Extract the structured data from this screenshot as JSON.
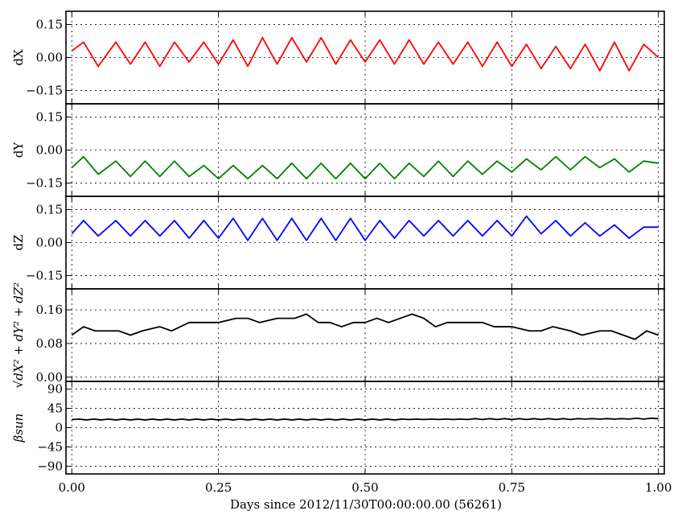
{
  "chart_data": {
    "type": "line",
    "xlabel": "Days since 2012/11/30T00:00:00.00 (56261)",
    "xlim": [
      -0.01,
      1.01
    ],
    "xticks": [
      0.0,
      0.25,
      0.5,
      0.75,
      1.0
    ],
    "xtick_labels": [
      "0.00",
      "0.25",
      "0.50",
      "0.75",
      "1.00"
    ],
    "grid": true,
    "panels": [
      {
        "key": "dx",
        "ylabel": "dX",
        "ylim": [
          -0.21,
          0.21
        ],
        "yticks": [
          -0.15,
          0.0,
          0.15
        ],
        "ytick_labels": [
          "-0.15",
          "0.00",
          "0.15"
        ],
        "color": "#ff0000",
        "series": {
          "x": [
            0.0,
            0.02,
            0.045,
            0.075,
            0.1,
            0.125,
            0.15,
            0.175,
            0.2,
            0.225,
            0.25,
            0.275,
            0.3,
            0.325,
            0.35,
            0.375,
            0.4,
            0.425,
            0.45,
            0.475,
            0.5,
            0.525,
            0.55,
            0.575,
            0.6,
            0.625,
            0.65,
            0.675,
            0.7,
            0.725,
            0.75,
            0.775,
            0.8,
            0.825,
            0.85,
            0.875,
            0.9,
            0.925,
            0.95,
            0.975,
            1.0
          ],
          "y": [
            0.03,
            0.07,
            -0.04,
            0.07,
            -0.03,
            0.07,
            -0.04,
            0.07,
            -0.02,
            0.07,
            -0.03,
            0.08,
            -0.04,
            0.09,
            -0.03,
            0.09,
            -0.02,
            0.09,
            -0.03,
            0.08,
            -0.02,
            0.08,
            -0.03,
            0.08,
            -0.03,
            0.07,
            -0.03,
            0.07,
            -0.04,
            0.07,
            -0.04,
            0.06,
            -0.05,
            0.05,
            -0.05,
            0.06,
            -0.06,
            0.07,
            -0.06,
            0.06,
            0.0
          ]
        }
      },
      {
        "key": "dy",
        "ylabel": "dY",
        "ylim": [
          -0.21,
          0.21
        ],
        "yticks": [
          -0.15,
          0.0,
          0.15
        ],
        "ytick_labels": [
          "-0.15",
          "0.00",
          "0.15"
        ],
        "color": "#008000",
        "series": {
          "x": [
            0.0,
            0.02,
            0.045,
            0.075,
            0.1,
            0.125,
            0.15,
            0.175,
            0.2,
            0.225,
            0.25,
            0.275,
            0.3,
            0.325,
            0.35,
            0.375,
            0.4,
            0.425,
            0.45,
            0.475,
            0.5,
            0.525,
            0.55,
            0.575,
            0.6,
            0.625,
            0.65,
            0.675,
            0.7,
            0.725,
            0.75,
            0.775,
            0.8,
            0.825,
            0.85,
            0.875,
            0.9,
            0.925,
            0.95,
            0.975,
            1.0
          ],
          "y": [
            -0.08,
            -0.03,
            -0.11,
            -0.05,
            -0.12,
            -0.05,
            -0.12,
            -0.05,
            -0.12,
            -0.07,
            -0.13,
            -0.07,
            -0.13,
            -0.07,
            -0.13,
            -0.06,
            -0.13,
            -0.06,
            -0.13,
            -0.06,
            -0.13,
            -0.06,
            -0.13,
            -0.06,
            -0.12,
            -0.05,
            -0.12,
            -0.05,
            -0.11,
            -0.05,
            -0.1,
            -0.04,
            -0.09,
            -0.03,
            -0.09,
            -0.03,
            -0.08,
            -0.04,
            -0.1,
            -0.05,
            -0.06
          ]
        }
      },
      {
        "key": "dz",
        "ylabel": "dZ",
        "ylim": [
          -0.21,
          0.21
        ],
        "yticks": [
          -0.15,
          0.0,
          0.15
        ],
        "ytick_labels": [
          "-0.15",
          "0.00",
          "0.15"
        ],
        "color": "#0000ff",
        "series": {
          "x": [
            0.0,
            0.02,
            0.045,
            0.075,
            0.1,
            0.125,
            0.15,
            0.175,
            0.2,
            0.225,
            0.25,
            0.275,
            0.3,
            0.325,
            0.35,
            0.375,
            0.4,
            0.425,
            0.45,
            0.475,
            0.5,
            0.525,
            0.55,
            0.575,
            0.6,
            0.625,
            0.65,
            0.675,
            0.7,
            0.725,
            0.75,
            0.775,
            0.8,
            0.825,
            0.85,
            0.875,
            0.9,
            0.925,
            0.95,
            0.975,
            1.0
          ],
          "y": [
            0.04,
            0.1,
            0.03,
            0.1,
            0.03,
            0.1,
            0.03,
            0.1,
            0.02,
            0.1,
            0.02,
            0.11,
            0.01,
            0.11,
            0.01,
            0.11,
            0.01,
            0.11,
            0.01,
            0.11,
            0.01,
            0.1,
            0.02,
            0.1,
            0.03,
            0.1,
            0.03,
            0.1,
            0.03,
            0.1,
            0.03,
            0.12,
            0.04,
            0.1,
            0.03,
            0.09,
            0.03,
            0.08,
            0.02,
            0.07,
            0.07
          ]
        }
      },
      {
        "key": "rss",
        "ylabel": "√dX² + dY² + dZ²",
        "ylim": [
          -0.01,
          0.21
        ],
        "yticks": [
          0.0,
          0.08,
          0.16
        ],
        "ytick_labels": [
          "0.00",
          "0.08",
          "0.16"
        ],
        "color": "#000000",
        "series": {
          "x": [
            0.0,
            0.02,
            0.04,
            0.06,
            0.08,
            0.1,
            0.12,
            0.15,
            0.17,
            0.2,
            0.22,
            0.25,
            0.28,
            0.3,
            0.32,
            0.35,
            0.38,
            0.4,
            0.42,
            0.44,
            0.46,
            0.48,
            0.5,
            0.52,
            0.54,
            0.56,
            0.58,
            0.6,
            0.62,
            0.64,
            0.66,
            0.68,
            0.7,
            0.72,
            0.75,
            0.78,
            0.8,
            0.82,
            0.85,
            0.87,
            0.9,
            0.92,
            0.94,
            0.96,
            0.98,
            1.0
          ],
          "y": [
            0.1,
            0.12,
            0.11,
            0.11,
            0.11,
            0.1,
            0.11,
            0.12,
            0.11,
            0.13,
            0.13,
            0.13,
            0.14,
            0.14,
            0.13,
            0.14,
            0.14,
            0.15,
            0.13,
            0.13,
            0.12,
            0.13,
            0.13,
            0.14,
            0.13,
            0.14,
            0.15,
            0.14,
            0.12,
            0.13,
            0.13,
            0.13,
            0.13,
            0.12,
            0.12,
            0.11,
            0.11,
            0.12,
            0.11,
            0.1,
            0.11,
            0.11,
            0.1,
            0.09,
            0.11,
            0.1
          ]
        }
      },
      {
        "key": "beta",
        "ylabel": "βsun",
        "ylim": [
          -108,
          108
        ],
        "yticks": [
          -90,
          -45,
          0,
          45,
          90
        ],
        "ytick_labels": [
          "-90",
          "-45",
          "0",
          "45",
          "90"
        ],
        "color": "#000000",
        "series": {
          "x": [
            0.0,
            0.0125,
            0.025,
            0.0375,
            0.05,
            0.0625,
            0.075,
            0.0875,
            0.1,
            0.1125,
            0.125,
            0.1375,
            0.15,
            0.1625,
            0.175,
            0.1875,
            0.2,
            0.2125,
            0.225,
            0.2375,
            0.25,
            0.2625,
            0.275,
            0.2875,
            0.3,
            0.3125,
            0.325,
            0.3375,
            0.35,
            0.3625,
            0.375,
            0.3875,
            0.4,
            0.4125,
            0.425,
            0.4375,
            0.45,
            0.4625,
            0.475,
            0.4875,
            0.5,
            0.5125,
            0.525,
            0.5375,
            0.55,
            0.5625,
            0.575,
            0.5875,
            0.6,
            0.6125,
            0.625,
            0.6375,
            0.65,
            0.6625,
            0.675,
            0.6875,
            0.7,
            0.7125,
            0.725,
            0.7375,
            0.75,
            0.7625,
            0.775,
            0.7875,
            0.8,
            0.8125,
            0.825,
            0.8375,
            0.85,
            0.8625,
            0.875,
            0.8875,
            0.9,
            0.9125,
            0.925,
            0.9375,
            0.95,
            0.9625,
            0.975,
            0.9875,
            1.0
          ],
          "y": [
            19,
            20,
            18,
            20,
            18,
            20,
            18,
            20,
            18,
            20,
            18,
            20,
            18,
            20,
            18,
            20,
            18,
            20,
            18,
            20,
            18,
            20,
            18,
            20,
            18,
            20,
            18,
            20,
            18,
            20,
            18,
            20,
            18,
            20,
            18,
            20,
            18,
            20,
            18,
            20,
            18,
            20,
            18,
            20,
            18,
            20,
            19,
            20,
            19,
            20,
            19,
            20,
            19,
            20,
            19,
            21,
            19,
            21,
            19,
            21,
            19,
            21,
            19,
            21,
            19,
            21,
            19,
            21,
            19,
            21,
            20,
            21,
            20,
            21,
            20,
            21,
            20,
            22,
            20,
            22,
            21
          ]
        }
      }
    ]
  }
}
